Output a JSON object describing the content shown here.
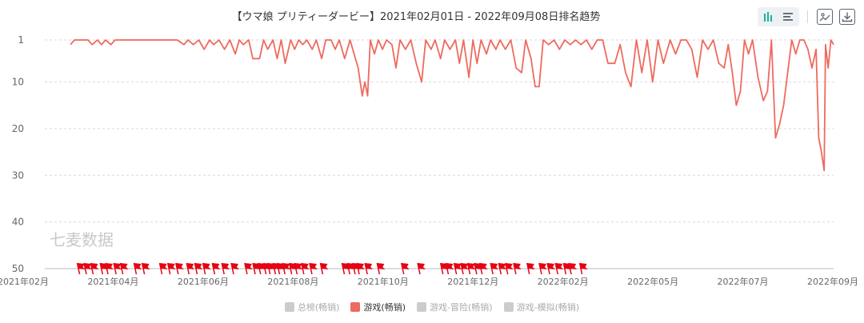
{
  "title": "【ウマ娘 プリティーダービー】2021年02月01日 - 2022年09月08日排名趋势",
  "watermark": "七麦数据",
  "colors": {
    "line": "#ee6a5f",
    "flags": "#e60012",
    "grid": "#d9d9d9",
    "axis_text": "#666666",
    "inactive": "#cccccc",
    "inactive_text": "#aaaaaa",
    "toolbar_active": "#19b39a",
    "toolbar_icon": "#5b6470"
  },
  "toolbar": {
    "chart_view_icon": "bar-chart-icon",
    "list_view_icon": "list-icon",
    "image_icon": "image-icon",
    "download_icon": "download-icon"
  },
  "legend": [
    {
      "label": "总榜(畅销)",
      "active": false
    },
    {
      "label": "游戏(畅销)",
      "active": true
    },
    {
      "label": "游戏-冒险(畅销)",
      "active": false
    },
    {
      "label": "游戏-模拟(畅销)",
      "active": false
    }
  ],
  "chart_data": {
    "type": "line",
    "y_inverted": true,
    "ylim": [
      1,
      50
    ],
    "y_ticks": [
      1,
      10,
      20,
      30,
      40,
      50
    ],
    "x_ticks": [
      "2021年02月",
      "2021年04月",
      "2021年06月",
      "2021年08月",
      "2021年10月",
      "2021年12月",
      "2022年02月",
      "2022年05月",
      "2022年07月",
      "2022年09月"
    ],
    "grid": true,
    "legend_position": "bottom",
    "series": [
      {
        "name": "游戏(畅销)",
        "points": [
          [
            "2021-02-20",
            2
          ],
          [
            "2021-02-23",
            1
          ],
          [
            "2021-03-05",
            1
          ],
          [
            "2021-03-08",
            2
          ],
          [
            "2021-03-12",
            1
          ],
          [
            "2021-03-15",
            2
          ],
          [
            "2021-03-18",
            1
          ],
          [
            "2021-03-22",
            2
          ],
          [
            "2021-03-25",
            1
          ],
          [
            "2021-03-30",
            1
          ],
          [
            "2021-04-10",
            1
          ],
          [
            "2021-04-20",
            1
          ],
          [
            "2021-05-01",
            1
          ],
          [
            "2021-05-10",
            1
          ],
          [
            "2021-05-15",
            2
          ],
          [
            "2021-05-18",
            1
          ],
          [
            "2021-05-22",
            2
          ],
          [
            "2021-05-26",
            1
          ],
          [
            "2021-05-30",
            3
          ],
          [
            "2021-06-03",
            1
          ],
          [
            "2021-06-06",
            2
          ],
          [
            "2021-06-10",
            1
          ],
          [
            "2021-06-14",
            3
          ],
          [
            "2021-06-18",
            1
          ],
          [
            "2021-06-22",
            4
          ],
          [
            "2021-06-25",
            1
          ],
          [
            "2021-06-28",
            2
          ],
          [
            "2021-07-02",
            1
          ],
          [
            "2021-07-05",
            5
          ],
          [
            "2021-07-10",
            5
          ],
          [
            "2021-07-13",
            1
          ],
          [
            "2021-07-16",
            3
          ],
          [
            "2021-07-20",
            1
          ],
          [
            "2021-07-23",
            5
          ],
          [
            "2021-07-26",
            1
          ],
          [
            "2021-07-29",
            6
          ],
          [
            "2021-08-02",
            1
          ],
          [
            "2021-08-05",
            3
          ],
          [
            "2021-08-08",
            1
          ],
          [
            "2021-08-11",
            2
          ],
          [
            "2021-08-14",
            1
          ],
          [
            "2021-08-18",
            3
          ],
          [
            "2021-08-21",
            1
          ],
          [
            "2021-08-25",
            5
          ],
          [
            "2021-08-28",
            1
          ],
          [
            "2021-09-01",
            1
          ],
          [
            "2021-09-04",
            3
          ],
          [
            "2021-09-07",
            1
          ],
          [
            "2021-09-11",
            5
          ],
          [
            "2021-09-15",
            1
          ],
          [
            "2021-09-18",
            4
          ],
          [
            "2021-09-21",
            7
          ],
          [
            "2021-09-24",
            13
          ],
          [
            "2021-09-26",
            10
          ],
          [
            "2021-09-28",
            13
          ],
          [
            "2021-09-30",
            1
          ],
          [
            "2021-10-03",
            4
          ],
          [
            "2021-10-06",
            1
          ],
          [
            "2021-10-09",
            3
          ],
          [
            "2021-10-12",
            1
          ],
          [
            "2021-10-16",
            2
          ],
          [
            "2021-10-19",
            7
          ],
          [
            "2021-10-22",
            1
          ],
          [
            "2021-10-26",
            3
          ],
          [
            "2021-10-30",
            1
          ],
          [
            "2021-11-03",
            6
          ],
          [
            "2021-11-07",
            10
          ],
          [
            "2021-11-10",
            1
          ],
          [
            "2021-11-14",
            3
          ],
          [
            "2021-11-17",
            1
          ],
          [
            "2021-11-21",
            5
          ],
          [
            "2021-11-24",
            1
          ],
          [
            "2021-11-28",
            3
          ],
          [
            "2021-12-02",
            1
          ],
          [
            "2021-12-05",
            6
          ],
          [
            "2021-12-08",
            1
          ],
          [
            "2021-12-12",
            9
          ],
          [
            "2021-12-15",
            1
          ],
          [
            "2021-12-18",
            6
          ],
          [
            "2021-12-21",
            1
          ],
          [
            "2021-12-25",
            4
          ],
          [
            "2021-12-28",
            1
          ],
          [
            "2022-01-01",
            3
          ],
          [
            "2022-01-04",
            1
          ],
          [
            "2022-01-08",
            3
          ],
          [
            "2022-01-12",
            1
          ],
          [
            "2022-01-16",
            7
          ],
          [
            "2022-01-20",
            8
          ],
          [
            "2022-01-23",
            1
          ],
          [
            "2022-01-27",
            5
          ],
          [
            "2022-01-30",
            11
          ],
          [
            "2022-02-02",
            11
          ],
          [
            "2022-02-05",
            1
          ],
          [
            "2022-02-09",
            2
          ],
          [
            "2022-02-13",
            1
          ],
          [
            "2022-02-17",
            3
          ],
          [
            "2022-02-21",
            1
          ],
          [
            "2022-02-25",
            2
          ],
          [
            "2022-03-01",
            1
          ],
          [
            "2022-03-05",
            2
          ],
          [
            "2022-03-09",
            1
          ],
          [
            "2022-03-13",
            3
          ],
          [
            "2022-03-17",
            1
          ],
          [
            "2022-03-21",
            1
          ],
          [
            "2022-03-25",
            6
          ],
          [
            "2022-03-30",
            6
          ],
          [
            "2022-04-03",
            2
          ],
          [
            "2022-04-07",
            8
          ],
          [
            "2022-04-11",
            11
          ],
          [
            "2022-04-15",
            1
          ],
          [
            "2022-04-19",
            8
          ],
          [
            "2022-04-23",
            1
          ],
          [
            "2022-04-27",
            10
          ],
          [
            "2022-05-01",
            1
          ],
          [
            "2022-05-05",
            6
          ],
          [
            "2022-05-10",
            1
          ],
          [
            "2022-05-14",
            4
          ],
          [
            "2022-05-18",
            1
          ],
          [
            "2022-05-22",
            1
          ],
          [
            "2022-05-26",
            3
          ],
          [
            "2022-05-30",
            9
          ],
          [
            "2022-06-03",
            1
          ],
          [
            "2022-06-07",
            3
          ],
          [
            "2022-06-11",
            1
          ],
          [
            "2022-06-15",
            6
          ],
          [
            "2022-06-19",
            7
          ],
          [
            "2022-06-22",
            2
          ],
          [
            "2022-06-25",
            8
          ],
          [
            "2022-06-28",
            15
          ],
          [
            "2022-07-01",
            12
          ],
          [
            "2022-07-04",
            1
          ],
          [
            "2022-07-07",
            4
          ],
          [
            "2022-07-10",
            1
          ],
          [
            "2022-07-14",
            9
          ],
          [
            "2022-07-18",
            14
          ],
          [
            "2022-07-21",
            12
          ],
          [
            "2022-07-24",
            1
          ],
          [
            "2022-07-27",
            22
          ],
          [
            "2022-07-30",
            19
          ],
          [
            "2022-08-02",
            15
          ],
          [
            "2022-08-05",
            8
          ],
          [
            "2022-08-08",
            1
          ],
          [
            "2022-08-11",
            4
          ],
          [
            "2022-08-14",
            1
          ],
          [
            "2022-08-17",
            1
          ],
          [
            "2022-08-20",
            3
          ],
          [
            "2022-08-23",
            7
          ],
          [
            "2022-08-26",
            3
          ],
          [
            "2022-08-28",
            22
          ],
          [
            "2022-08-30",
            25
          ],
          [
            "2022-09-01",
            29
          ],
          [
            "2022-09-02",
            2
          ],
          [
            "2022-09-04",
            7
          ],
          [
            "2022-09-06",
            1
          ],
          [
            "2022-09-08",
            2
          ]
        ]
      }
    ],
    "event_markers": {
      "description": "red flag markers along the x-axis (version/update events)",
      "dates": [
        "2021-02-25",
        "2021-03-02",
        "2021-03-07",
        "2021-03-14",
        "2021-03-18",
        "2021-03-24",
        "2021-03-29",
        "2021-04-08",
        "2021-04-14",
        "2021-04-27",
        "2021-05-03",
        "2021-05-09",
        "2021-05-17",
        "2021-05-23",
        "2021-05-29",
        "2021-06-05",
        "2021-06-12",
        "2021-06-19",
        "2021-06-29",
        "2021-07-05",
        "2021-07-09",
        "2021-07-13",
        "2021-07-16",
        "2021-07-20",
        "2021-07-23",
        "2021-07-27",
        "2021-08-01",
        "2021-08-05",
        "2021-08-10",
        "2021-08-16",
        "2021-08-24",
        "2021-09-09",
        "2021-09-13",
        "2021-09-17",
        "2021-09-20",
        "2021-09-26",
        "2021-10-05",
        "2021-10-23",
        "2021-11-04",
        "2021-11-21",
        "2021-11-25",
        "2021-12-01",
        "2021-12-06",
        "2021-12-11",
        "2021-12-16",
        "2021-12-20",
        "2021-12-28",
        "2022-01-03",
        "2022-01-08",
        "2022-01-14",
        "2022-01-24",
        "2022-02-02",
        "2022-02-08",
        "2022-02-14",
        "2022-02-20",
        "2022-02-24",
        "2022-03-04"
      ]
    }
  }
}
